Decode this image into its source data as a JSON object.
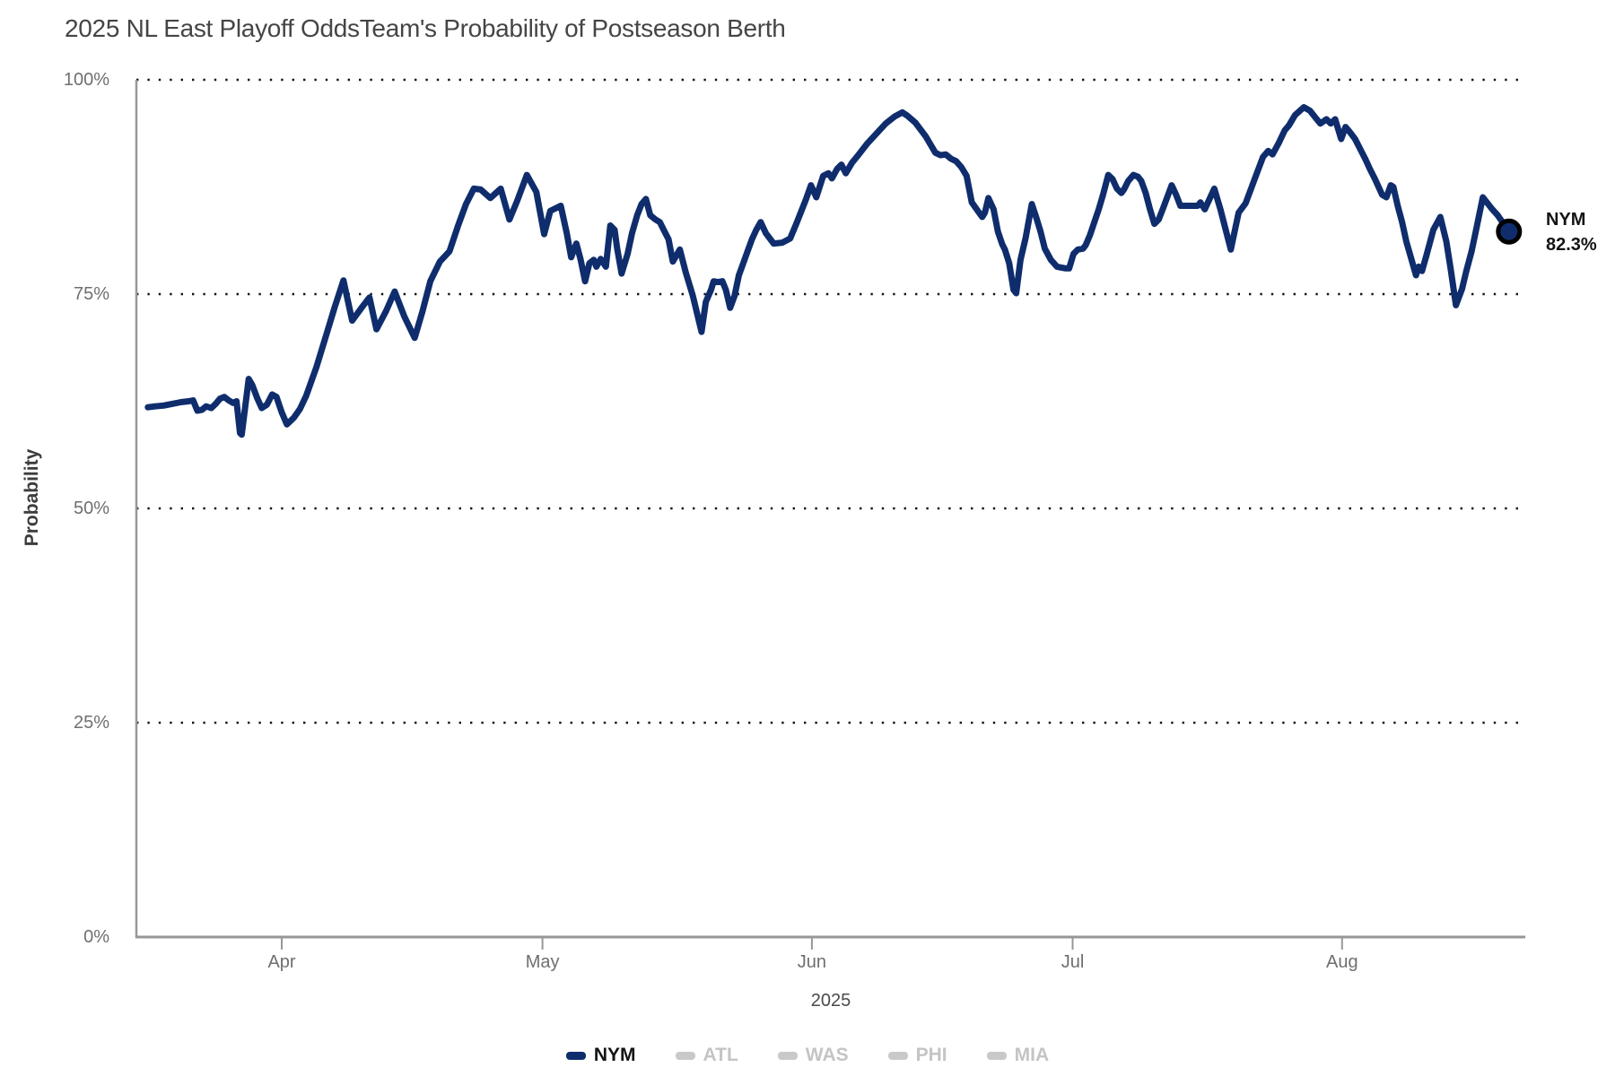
{
  "header": {
    "title": "2025 NL East Playoff Odds",
    "subtitle": "Team's Probability of Postseason Berth"
  },
  "annotation": {
    "team": "NYM",
    "value": "82.3%"
  },
  "colors": {
    "line": "#0f2d6d",
    "dot_ring": "#000000",
    "grid_dots": "#141414",
    "axis": "#979797",
    "inactive": "#c9c9c9",
    "inactive_text": "#c4c4c4",
    "active_text": "#141414"
  },
  "legend": [
    {
      "label": "NYM",
      "color": "#0f2d6d",
      "text_color": "#141414",
      "active": true
    },
    {
      "label": "ATL",
      "color": "#c9c9c9",
      "text_color": "#c4c4c4",
      "active": false
    },
    {
      "label": "WAS",
      "color": "#c9c9c9",
      "text_color": "#c4c4c4",
      "active": false
    },
    {
      "label": "PHI",
      "color": "#c9c9c9",
      "text_color": "#c4c4c4",
      "active": false
    },
    {
      "label": "MIA",
      "color": "#c9c9c9",
      "text_color": "#c4c4c4",
      "active": false
    }
  ],
  "chart_data": {
    "type": "line",
    "title": "2025 NL East Playoff Odds",
    "subtitle": "Team's Probability of Postseason Berth",
    "xlabel": "2025",
    "ylabel": "Probability",
    "ylim": [
      0,
      100
    ],
    "grid": "dotted horizontal at 25/50/75/100",
    "legend_position": "bottom-center",
    "date_range": "mid-March 2025 through late August 2025",
    "x_unit": "days since Apr 1 (0 = Apr 1)",
    "yticks": [
      {
        "value": 0,
        "label": "0%"
      },
      {
        "value": 25,
        "label": "25%"
      },
      {
        "value": 50,
        "label": "50%"
      },
      {
        "value": 75,
        "label": "75%"
      },
      {
        "value": 100,
        "label": "100%"
      }
    ],
    "xticks": [
      {
        "day": 0,
        "label": "Apr"
      },
      {
        "day": 30,
        "label": "May"
      },
      {
        "day": 61,
        "label": "Jun"
      },
      {
        "day": 91,
        "label": "Jul"
      },
      {
        "day": 122,
        "label": "Aug"
      }
    ],
    "series": [
      {
        "name": "NYM",
        "color": "#0f2d6d",
        "end_value_pct": 82.3,
        "points": [
          [
            -15.4,
            61.8
          ],
          [
            -14.6,
            61.9
          ],
          [
            -13.6,
            62.0
          ],
          [
            -12.6,
            62.2
          ],
          [
            -11.6,
            62.4
          ],
          [
            -10.7,
            62.5
          ],
          [
            -10.2,
            62.6
          ],
          [
            -9.7,
            61.4
          ],
          [
            -9.2,
            61.5
          ],
          [
            -8.7,
            61.9
          ],
          [
            -8.1,
            61.7
          ],
          [
            -7.6,
            62.2
          ],
          [
            -7.1,
            62.8
          ],
          [
            -6.6,
            63.0
          ],
          [
            -6.1,
            62.6
          ],
          [
            -5.6,
            62.3
          ],
          [
            -5.2,
            62.5
          ],
          [
            -4.8,
            58.8
          ],
          [
            -4.6,
            58.6
          ],
          [
            -3.8,
            65.1
          ],
          [
            -3.4,
            64.4
          ],
          [
            -2.8,
            62.8
          ],
          [
            -2.3,
            61.7
          ],
          [
            -1.7,
            62.1
          ],
          [
            -1.1,
            63.3
          ],
          [
            -0.6,
            63.0
          ],
          [
            0.0,
            61.2
          ],
          [
            0.6,
            59.8
          ],
          [
            1.4,
            60.6
          ],
          [
            2.1,
            61.6
          ],
          [
            2.8,
            63.1
          ],
          [
            4.0,
            66.5
          ],
          [
            5.2,
            70.5
          ],
          [
            6.1,
            73.5
          ],
          [
            7.1,
            76.6
          ],
          [
            8.1,
            71.9
          ],
          [
            9.1,
            73.3
          ],
          [
            10.1,
            74.6
          ],
          [
            10.9,
            70.9
          ],
          [
            12.0,
            73.0
          ],
          [
            13.0,
            75.3
          ],
          [
            14.1,
            72.4
          ],
          [
            15.3,
            69.9
          ],
          [
            16.2,
            73.0
          ],
          [
            17.1,
            76.5
          ],
          [
            18.2,
            78.8
          ],
          [
            19.3,
            80.0
          ],
          [
            20.3,
            83.0
          ],
          [
            21.2,
            85.5
          ],
          [
            22.1,
            87.3
          ],
          [
            22.9,
            87.2
          ],
          [
            24.0,
            86.2
          ],
          [
            25.2,
            87.3
          ],
          [
            26.2,
            83.7
          ],
          [
            27.1,
            85.9
          ],
          [
            28.2,
            88.9
          ],
          [
            29.3,
            86.9
          ],
          [
            30.2,
            82.0
          ],
          [
            30.9,
            84.7
          ],
          [
            32.1,
            85.3
          ],
          [
            32.8,
            82.1
          ],
          [
            33.3,
            79.3
          ],
          [
            33.9,
            80.9
          ],
          [
            34.4,
            79.0
          ],
          [
            34.9,
            76.5
          ],
          [
            35.4,
            78.6
          ],
          [
            35.9,
            79.0
          ],
          [
            36.2,
            78.2
          ],
          [
            36.7,
            79.1
          ],
          [
            37.3,
            78.2
          ],
          [
            37.8,
            83.0
          ],
          [
            38.3,
            82.5
          ],
          [
            38.6,
            80.3
          ],
          [
            39.1,
            77.4
          ],
          [
            39.8,
            79.7
          ],
          [
            40.3,
            82.1
          ],
          [
            40.9,
            84.2
          ],
          [
            41.4,
            85.5
          ],
          [
            41.9,
            86.1
          ],
          [
            42.4,
            84.2
          ],
          [
            43.0,
            83.7
          ],
          [
            43.5,
            83.4
          ],
          [
            44.0,
            82.4
          ],
          [
            44.5,
            81.4
          ],
          [
            45.0,
            78.8
          ],
          [
            45.8,
            80.2
          ],
          [
            46.5,
            77.5
          ],
          [
            47.3,
            74.8
          ],
          [
            48.3,
            70.6
          ],
          [
            48.8,
            74.1
          ],
          [
            49.4,
            75.5
          ],
          [
            49.7,
            76.5
          ],
          [
            50.2,
            76.4
          ],
          [
            50.7,
            76.5
          ],
          [
            51.1,
            75.5
          ],
          [
            51.6,
            73.4
          ],
          [
            52.1,
            74.8
          ],
          [
            52.6,
            77.2
          ],
          [
            53.1,
            78.6
          ],
          [
            53.6,
            80.0
          ],
          [
            54.1,
            81.4
          ],
          [
            54.6,
            82.5
          ],
          [
            55.1,
            83.4
          ],
          [
            55.7,
            82.1
          ],
          [
            56.6,
            80.9
          ],
          [
            57.6,
            81.0
          ],
          [
            58.5,
            81.5
          ],
          [
            59.2,
            83.2
          ],
          [
            60.3,
            86.0
          ],
          [
            60.9,
            87.7
          ],
          [
            61.5,
            86.3
          ],
          [
            62.3,
            88.8
          ],
          [
            62.9,
            89.1
          ],
          [
            63.3,
            88.5
          ],
          [
            63.9,
            89.6
          ],
          [
            64.4,
            90.1
          ],
          [
            64.9,
            89.1
          ],
          [
            65.6,
            90.3
          ],
          [
            66.4,
            91.3
          ],
          [
            67.4,
            92.6
          ],
          [
            68.4,
            93.7
          ],
          [
            69.5,
            94.9
          ],
          [
            70.5,
            95.7
          ],
          [
            71.4,
            96.2
          ],
          [
            72.0,
            95.8
          ],
          [
            72.9,
            95.0
          ],
          [
            74.1,
            93.4
          ],
          [
            75.2,
            91.5
          ],
          [
            75.8,
            91.2
          ],
          [
            76.4,
            91.3
          ],
          [
            77.0,
            90.8
          ],
          [
            77.6,
            90.5
          ],
          [
            78.2,
            89.8
          ],
          [
            78.8,
            88.8
          ],
          [
            79.4,
            85.7
          ],
          [
            80.3,
            84.4
          ],
          [
            80.6,
            84.0
          ],
          [
            80.9,
            84.5
          ],
          [
            81.3,
            86.2
          ],
          [
            81.9,
            84.9
          ],
          [
            82.4,
            82.3
          ],
          [
            82.9,
            80.8
          ],
          [
            83.2,
            80.2
          ],
          [
            83.7,
            78.6
          ],
          [
            84.2,
            75.5
          ],
          [
            84.5,
            75.1
          ],
          [
            85.0,
            79.0
          ],
          [
            85.6,
            81.6
          ],
          [
            86.3,
            85.5
          ],
          [
            86.8,
            84.0
          ],
          [
            87.3,
            82.3
          ],
          [
            87.8,
            80.3
          ],
          [
            88.5,
            79.0
          ],
          [
            89.2,
            78.2
          ],
          [
            89.7,
            78.1
          ],
          [
            90.2,
            78.0
          ],
          [
            90.6,
            78.0
          ],
          [
            91.1,
            79.7
          ],
          [
            91.6,
            80.2
          ],
          [
            92.2,
            80.3
          ],
          [
            92.5,
            80.7
          ],
          [
            93.0,
            81.9
          ],
          [
            93.5,
            83.4
          ],
          [
            94.0,
            84.9
          ],
          [
            94.5,
            86.6
          ],
          [
            95.1,
            88.9
          ],
          [
            95.6,
            88.4
          ],
          [
            96.1,
            87.3
          ],
          [
            96.6,
            86.8
          ],
          [
            96.9,
            87.2
          ],
          [
            97.4,
            88.2
          ],
          [
            98.0,
            88.9
          ],
          [
            98.5,
            88.7
          ],
          [
            98.9,
            88.2
          ],
          [
            99.4,
            86.8
          ],
          [
            99.9,
            84.9
          ],
          [
            100.4,
            83.2
          ],
          [
            100.9,
            83.7
          ],
          [
            101.4,
            85.0
          ],
          [
            102.4,
            87.7
          ],
          [
            102.9,
            86.6
          ],
          [
            103.4,
            85.3
          ],
          [
            105.4,
            85.3
          ],
          [
            105.7,
            85.7
          ],
          [
            106.2,
            84.9
          ],
          [
            107.3,
            87.3
          ],
          [
            108.0,
            84.9
          ],
          [
            109.2,
            80.2
          ],
          [
            110.1,
            84.5
          ],
          [
            110.9,
            85.6
          ],
          [
            112.3,
            89.4
          ],
          [
            112.9,
            91.0
          ],
          [
            113.5,
            91.7
          ],
          [
            114.0,
            91.3
          ],
          [
            114.7,
            92.6
          ],
          [
            115.4,
            94.1
          ],
          [
            115.9,
            94.7
          ],
          [
            116.6,
            95.9
          ],
          [
            117.6,
            96.8
          ],
          [
            118.3,
            96.4
          ],
          [
            119.0,
            95.5
          ],
          [
            119.5,
            94.9
          ],
          [
            120.2,
            95.4
          ],
          [
            120.7,
            94.9
          ],
          [
            121.2,
            95.4
          ],
          [
            121.9,
            93.1
          ],
          [
            122.4,
            94.5
          ],
          [
            122.9,
            93.9
          ],
          [
            123.5,
            93.1
          ],
          [
            124.2,
            91.7
          ],
          [
            124.7,
            90.7
          ],
          [
            125.2,
            89.6
          ],
          [
            125.8,
            88.4
          ],
          [
            126.6,
            86.6
          ],
          [
            127.1,
            86.3
          ],
          [
            127.6,
            87.7
          ],
          [
            127.9,
            87.5
          ],
          [
            128.4,
            85.3
          ],
          [
            128.9,
            83.4
          ],
          [
            129.4,
            81.1
          ],
          [
            130.0,
            79.0
          ],
          [
            130.5,
            77.2
          ],
          [
            130.8,
            78.2
          ],
          [
            131.2,
            77.7
          ],
          [
            131.7,
            79.5
          ],
          [
            132.5,
            82.5
          ],
          [
            133.3,
            84.0
          ],
          [
            134.0,
            81.1
          ],
          [
            134.5,
            77.9
          ],
          [
            135.1,
            73.7
          ],
          [
            135.8,
            75.6
          ],
          [
            136.3,
            77.7
          ],
          [
            136.9,
            80.0
          ],
          [
            137.4,
            82.4
          ],
          [
            138.2,
            86.3
          ],
          [
            139.2,
            85.0
          ],
          [
            139.9,
            84.2
          ],
          [
            141.2,
            82.3
          ]
        ]
      }
    ],
    "inactive_series": [
      "ATL",
      "WAS",
      "PHI",
      "MIA"
    ]
  }
}
